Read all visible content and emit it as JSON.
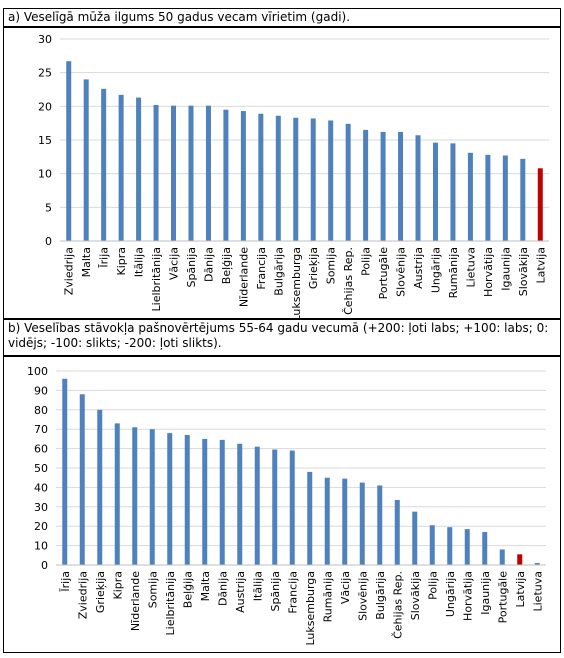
{
  "panels": [
    {
      "title": "a) Veselīgā mūža ilgums 50 gadus vecam vīrietim (gadi).",
      "colors": {
        "bar": "#4f81bd",
        "highlight": "#c00000"
      },
      "highlight_category": "Latvija",
      "chart_data": {
        "type": "bar",
        "categories": [
          "Zviedrija",
          "Malta",
          "Īrija",
          "Kipra",
          "Itālija",
          "Lielbritānija",
          "Vācija",
          "Spānija",
          "Dānija",
          "Beļģija",
          "Nīderlande",
          "Francija",
          "Bulgārija",
          "Luksemburga",
          "Grieķija",
          "Somija",
          "Čehijas Rep.",
          "Polija",
          "Portugāle",
          "Slovēnija",
          "Austrija",
          "Ungārija",
          "Rumānija",
          "Lietuva",
          "Horvātija",
          "Igaunija",
          "Slovākija",
          "Latvija"
        ],
        "values": [
          26.7,
          24.0,
          22.6,
          21.7,
          21.3,
          20.2,
          20.1,
          20.1,
          20.1,
          19.5,
          19.3,
          18.9,
          18.6,
          18.3,
          18.2,
          17.9,
          17.4,
          16.5,
          16.2,
          16.2,
          15.7,
          14.6,
          14.5,
          13.1,
          12.8,
          12.7,
          12.2,
          10.8
        ],
        "ylim": [
          0,
          30
        ],
        "yticks": [
          0,
          5,
          10,
          15,
          20,
          25,
          30
        ],
        "grid": true
      }
    },
    {
      "title": "b) Veselības stāvokļa pašnovērtējums 55-64 gadu vecumā (+200: ļoti labs; +100: labs; 0: vidējs; -100: slikts; -200: ļoti slikts).",
      "colors": {
        "bar": "#4f81bd",
        "highlight": "#c00000"
      },
      "highlight_category": "Latvija",
      "chart_data": {
        "type": "bar",
        "categories": [
          "Īrija",
          "Zviedrija",
          "Grieķija",
          "Kipra",
          "Nīderlande",
          "Somija",
          "Lielbritānija",
          "Beļģija",
          "Malta",
          "Dānija",
          "Austrija",
          "Itālija",
          "Spānija",
          "Francija",
          "Luksemburga",
          "Rumānija",
          "Vācija",
          "Slovēnija",
          "Bulgārija",
          "Čehijas Rep.",
          "Slovākija",
          "Polija",
          "Ungārija",
          "Horvātija",
          "Igaunija",
          "Portugāle",
          "Latvija",
          "Lietuva"
        ],
        "values": [
          96,
          88,
          80,
          73,
          71,
          70,
          68,
          67,
          65,
          64.5,
          62.5,
          61,
          59.5,
          59,
          48,
          45,
          44.5,
          42.5,
          41,
          33.5,
          27.5,
          20.5,
          19.5,
          18.5,
          17,
          8,
          5.5,
          1
        ],
        "ylim": [
          0,
          100
        ],
        "yticks": [
          0,
          10,
          20,
          30,
          40,
          50,
          60,
          70,
          80,
          90,
          100
        ],
        "grid": true
      }
    }
  ]
}
